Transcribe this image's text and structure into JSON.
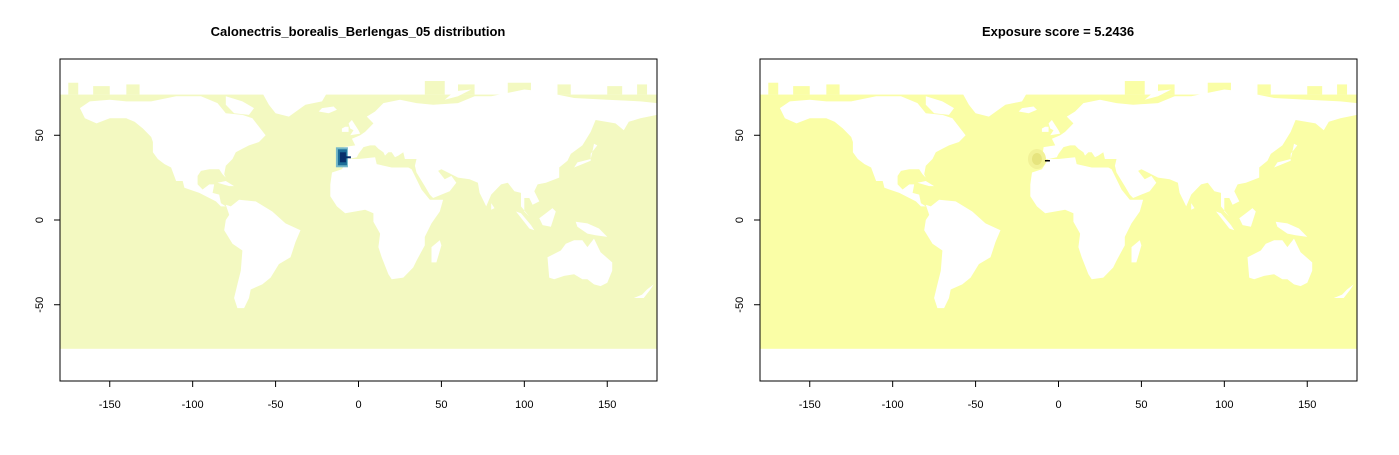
{
  "chart_data": [
    {
      "type": "heatmap",
      "title": "Calonectris_borealis_Berlengas_05 distribution",
      "xlim": [
        -180,
        180
      ],
      "ylim": [
        -95,
        95
      ],
      "x_ticks": [
        -150,
        -100,
        -50,
        0,
        50,
        100,
        150
      ],
      "x_tick_labels": [
        "-150",
        "-100",
        "-50",
        "0",
        "50",
        "100",
        "150"
      ],
      "y_ticks": [
        -50,
        0,
        50
      ],
      "y_tick_labels": [
        "-50",
        "0",
        "50"
      ],
      "ocean_color": "#f3f9c1",
      "land_color": "#ffffff",
      "grid": false,
      "hotspot": {
        "lon": -10,
        "lat": 37,
        "colors": [
          "#08306b",
          "#1d6e99",
          "#74b8c8"
        ]
      }
    },
    {
      "type": "heatmap",
      "title": "Exposure score = 5.2436",
      "xlim": [
        -180,
        180
      ],
      "ylim": [
        -95,
        95
      ],
      "x_ticks": [
        -150,
        -100,
        -50,
        0,
        50,
        100,
        150
      ],
      "x_tick_labels": [
        "-150",
        "-100",
        "-50",
        "0",
        "50",
        "100",
        "150"
      ],
      "y_ticks": [
        -50,
        0,
        50
      ],
      "y_tick_labels": [
        "-50",
        "0",
        "50"
      ],
      "ocean_color": "#fafea6",
      "land_color": "#ffffff",
      "grid": false,
      "hotspot": {
        "lon": -13,
        "lat": 36,
        "colors": [
          "#e6e47e",
          "#f2f297"
        ]
      }
    }
  ]
}
